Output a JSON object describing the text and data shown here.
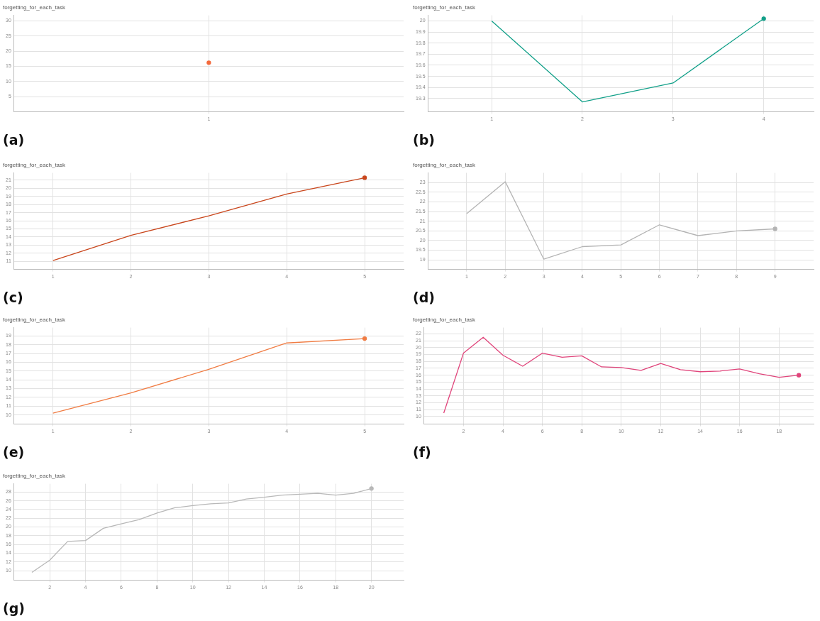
{
  "chart_data": [
    {
      "type": "line",
      "title": "forgetting_for_each_task",
      "annotations": [
        "(a)"
      ],
      "categories": [
        "1"
      ],
      "ylim": [
        0,
        31.8
      ],
      "yticks": [
        5,
        10,
        15,
        20,
        25,
        30
      ],
      "grid": true,
      "series": [
        {
          "color": "#f4693b",
          "marker": "circle",
          "values": [
            16.2
          ]
        }
      ]
    },
    {
      "type": "line",
      "title": "forgetting_for_each_task",
      "annotations": [
        "(b)"
      ],
      "x": [
        1,
        2,
        3,
        4
      ],
      "xlim": [
        0.3,
        4.55
      ],
      "xticks": [
        1,
        2,
        3,
        4
      ],
      "ylim": [
        19.18,
        20.05
      ],
      "yticks": [
        19.3,
        19.4,
        19.5,
        19.6,
        19.7,
        19.8,
        19.9,
        20
      ],
      "grid": true,
      "series": [
        {
          "color": "#12a089",
          "values": [
            20.0,
            19.27,
            19.44,
            20.02
          ]
        }
      ]
    },
    {
      "type": "line",
      "title": "forgetting_for_each_task",
      "annotations": [
        "(c)"
      ],
      "x": [
        1,
        2,
        3,
        4,
        5
      ],
      "xlim": [
        0.5,
        5.5
      ],
      "xticks": [
        1,
        2,
        3,
        4,
        5
      ],
      "ylim": [
        10,
        21.9
      ],
      "yticks": [
        11,
        12,
        13,
        14,
        15,
        16,
        17,
        18,
        19,
        20,
        21
      ],
      "grid": true,
      "series": [
        {
          "color": "#c9461c",
          "values": [
            11.1,
            14.2,
            16.6,
            19.3,
            21.3
          ]
        }
      ]
    },
    {
      "type": "line",
      "title": "forgetting_for_each_task",
      "annotations": [
        "(d)"
      ],
      "x": [
        1,
        2,
        3,
        4,
        5,
        6,
        7,
        8,
        9
      ],
      "xlim": [
        0,
        10
      ],
      "xticks": [
        1,
        2,
        3,
        4,
        5,
        6,
        7,
        8,
        9
      ],
      "ylim": [
        18.5,
        23.5
      ],
      "yticks": [
        19,
        19.5,
        20,
        20.5,
        21,
        21.5,
        22,
        22.5,
        23
      ],
      "grid": true,
      "series": [
        {
          "color": "#b4b4b4",
          "values": [
            21.39,
            23.04,
            19.03,
            19.68,
            19.77,
            20.81,
            20.25,
            20.49,
            20.6
          ]
        }
      ]
    },
    {
      "type": "line",
      "title": "forgetting_for_each_task",
      "annotations": [
        "(e)"
      ],
      "x": [
        1,
        2,
        3,
        4,
        5
      ],
      "xlim": [
        0.5,
        5.5
      ],
      "xticks": [
        1,
        2,
        3,
        4,
        5
      ],
      "ylim": [
        8.95,
        19.95
      ],
      "yticks": [
        10,
        11,
        12,
        13,
        14,
        15,
        16,
        17,
        18,
        19
      ],
      "grid": true,
      "series": [
        {
          "color": "#f07c43",
          "values": [
            10.2,
            12.5,
            15.2,
            18.2,
            18.7
          ]
        }
      ]
    },
    {
      "type": "line",
      "title": "forgetting_for_each_task",
      "annotations": [
        "(f)"
      ],
      "x": [
        1,
        2,
        3,
        4,
        5,
        6,
        7,
        8,
        9,
        10,
        11,
        12,
        13,
        14,
        15,
        16,
        17,
        18,
        19
      ],
      "xlim": [
        0,
        19.75
      ],
      "xticks": [
        2,
        4,
        6,
        8,
        10,
        12,
        14,
        16,
        18
      ],
      "ylim": [
        8.9,
        22.9
      ],
      "yticks": [
        10,
        11,
        12,
        13,
        14,
        15,
        16,
        17,
        18,
        19,
        20,
        21,
        22
      ],
      "grid": true,
      "series": [
        {
          "color": "#e0457b",
          "values": [
            10.5,
            19.2,
            21.5,
            18.9,
            17.3,
            19.2,
            18.6,
            18.8,
            17.2,
            17.1,
            16.7,
            17.7,
            16.8,
            16.5,
            16.6,
            16.9,
            16.2,
            15.7,
            16.0
          ]
        }
      ]
    },
    {
      "type": "line",
      "title": "forgetting_for_each_task",
      "annotations": [
        "(g)"
      ],
      "x": [
        1,
        2,
        3,
        4,
        5,
        6,
        7,
        8,
        9,
        10,
        11,
        12,
        13,
        14,
        15,
        16,
        17,
        18,
        19,
        20
      ],
      "xlim": [
        0,
        21.8
      ],
      "xticks": [
        2,
        4,
        6,
        8,
        10,
        12,
        14,
        16,
        18,
        20
      ],
      "ylim": [
        7.8,
        29.9
      ],
      "yticks": [
        10,
        12,
        14,
        16,
        18,
        20,
        22,
        24,
        26,
        28
      ],
      "grid": true,
      "series": [
        {
          "color": "#b8b8b8",
          "values": [
            9.6,
            12.4,
            16.7,
            16.9,
            19.7,
            20.7,
            21.7,
            23.2,
            24.4,
            24.9,
            25.3,
            25.5,
            26.4,
            26.8,
            27.3,
            27.5,
            27.7,
            27.3,
            27.7,
            28.8
          ]
        }
      ]
    }
  ]
}
